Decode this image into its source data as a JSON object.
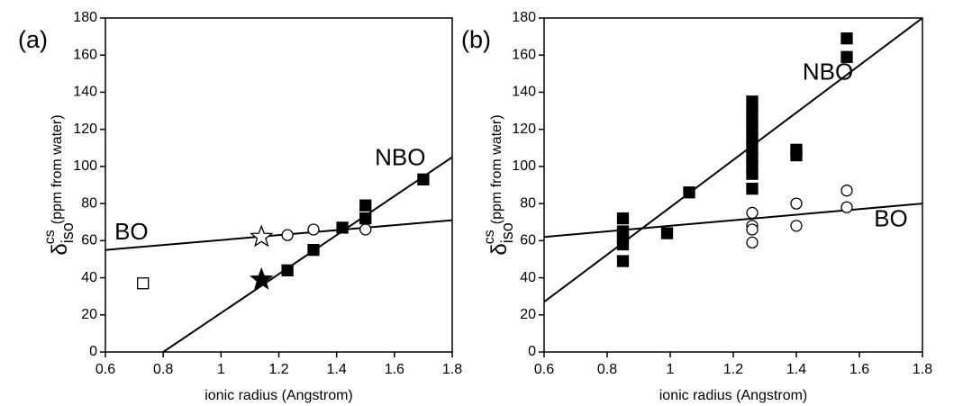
{
  "chart_data": [
    {
      "type": "scatter",
      "panel_label": "(a)",
      "xlabel": "ionic radius (Angstrom)",
      "ylabel_symbol": "δ",
      "ylabel_sub": "iso",
      "ylabel_sup": "cs",
      "ylabel": "(ppm from water)",
      "xlim": [
        0.6,
        1.8
      ],
      "xticks": [
        0.6,
        0.8,
        1,
        1.2,
        1.4,
        1.6,
        1.8
      ],
      "ylim": [
        0,
        180
      ],
      "yticks": [
        0,
        20,
        40,
        60,
        80,
        100,
        120,
        140,
        160,
        180
      ],
      "series": [
        {
          "marker": "square",
          "filled": true,
          "color": "#000000",
          "x": [
            1.23,
            1.32,
            1.42,
            1.5,
            1.5,
            1.7
          ],
          "values": [
            44,
            55,
            67,
            79,
            72,
            93
          ]
        },
        {
          "marker": "star",
          "filled": true,
          "color": "#000000",
          "x": [
            1.14
          ],
          "values": [
            39
          ]
        },
        {
          "marker": "circle",
          "filled": false,
          "color": "#000000",
          "x": [
            1.23,
            1.32,
            1.5
          ],
          "values": [
            63,
            66,
            66
          ]
        },
        {
          "marker": "star",
          "filled": false,
          "color": "#000000",
          "x": [
            1.14
          ],
          "values": [
            62
          ]
        },
        {
          "marker": "square",
          "filled": false,
          "color": "#000000",
          "x": [
            0.73
          ],
          "values": [
            37
          ]
        }
      ],
      "lines": [
        {
          "name": "BO",
          "color": "#000000",
          "x": [
            0.6,
            1.8
          ],
          "values": [
            55,
            71
          ]
        },
        {
          "name": "NBO",
          "color": "#000000",
          "x": [
            0.8,
            1.8
          ],
          "values": [
            0,
            105
          ]
        }
      ]
    },
    {
      "type": "scatter",
      "panel_label": "(b)",
      "xlabel": "ionic radius (Angstrom)",
      "ylabel_symbol": "δ",
      "ylabel_sub": "iso",
      "ylabel_sup": "cs",
      "ylabel": "(ppm from water)",
      "xlim": [
        0.6,
        1.8
      ],
      "xticks": [
        0.6,
        0.8,
        1,
        1.2,
        1.4,
        1.6,
        1.8
      ],
      "ylim": [
        0,
        180
      ],
      "yticks": [
        0,
        20,
        40,
        60,
        80,
        100,
        120,
        140,
        160,
        180
      ],
      "series": [
        {
          "marker": "square",
          "filled": true,
          "color": "#000000",
          "x": [
            0.85,
            0.85,
            0.85,
            0.85,
            0.85,
            0.99,
            1.06,
            1.26,
            1.26,
            1.26,
            1.26,
            1.26,
            1.26,
            1.26,
            1.26,
            1.26,
            1.26,
            1.4,
            1.4,
            1.56,
            1.56
          ],
          "values": [
            72,
            65,
            62,
            58,
            49,
            64,
            86,
            135,
            130,
            125,
            120,
            115,
            110,
            105,
            100,
            96,
            88,
            109,
            106,
            169,
            159
          ]
        },
        {
          "marker": "circle",
          "filled": false,
          "color": "#000000",
          "x": [
            1.26,
            1.26,
            1.26,
            1.26,
            1.4,
            1.4,
            1.56,
            1.56
          ],
          "values": [
            75,
            68,
            66,
            59,
            80,
            68,
            87,
            78
          ]
        }
      ],
      "lines": [
        {
          "name": "NBO",
          "color": "#000000",
          "x": [
            0.6,
            1.8
          ],
          "values": [
            27,
            180
          ]
        },
        {
          "name": "BO",
          "color": "#000000",
          "x": [
            0.6,
            1.8
          ],
          "values": [
            62,
            80
          ]
        }
      ]
    }
  ]
}
